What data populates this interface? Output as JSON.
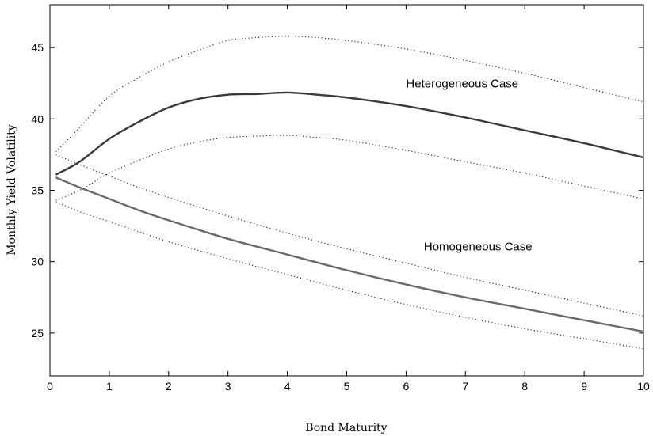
{
  "chart_data": {
    "type": "line",
    "title": "",
    "xlabel": "Bond Maturity",
    "ylabel": "Monthly Yield Volatility",
    "xlim": [
      0,
      10
    ],
    "ylim": [
      22,
      48
    ],
    "xticks": [
      0,
      1,
      2,
      3,
      4,
      5,
      6,
      7,
      8,
      9,
      10
    ],
    "yticks": [
      25,
      30,
      35,
      40,
      45
    ],
    "grid": false,
    "legend": "none",
    "series": [
      {
        "style": "solid",
        "color": "#3a3a3a",
        "width": 2.4,
        "x": [
          0.1,
          0.5,
          1,
          1.5,
          2,
          2.5,
          3,
          3.5,
          4,
          4.5,
          5,
          6,
          7,
          8,
          9,
          10
        ],
        "y": [
          36.1,
          37.0,
          38.6,
          39.8,
          40.8,
          41.4,
          41.7,
          41.75,
          41.85,
          41.7,
          41.5,
          40.9,
          40.1,
          39.2,
          38.3,
          37.3
        ]
      },
      {
        "style": "dotted",
        "color": "#222222",
        "width": 1.1,
        "x": [
          0.1,
          0.5,
          1,
          1.5,
          2,
          2.5,
          3,
          3.5,
          4,
          4.5,
          5,
          6,
          7,
          8,
          9,
          10
        ],
        "y": [
          37.7,
          39.4,
          41.6,
          42.9,
          44.0,
          44.8,
          45.5,
          45.7,
          45.8,
          45.7,
          45.5,
          44.9,
          44.1,
          43.2,
          42.2,
          41.2
        ]
      },
      {
        "style": "dotted",
        "color": "#222222",
        "width": 1.1,
        "x": [
          0.1,
          0.5,
          1,
          1.5,
          2,
          2.5,
          3,
          3.5,
          4,
          4.5,
          5,
          6,
          7,
          8,
          9,
          10
        ],
        "y": [
          34.3,
          35.0,
          36.2,
          37.1,
          37.9,
          38.4,
          38.7,
          38.8,
          38.85,
          38.7,
          38.5,
          37.8,
          37.0,
          36.2,
          35.3,
          34.4
        ]
      },
      {
        "style": "solid",
        "color": "#6a6a6a",
        "width": 2.4,
        "x": [
          0.1,
          0.5,
          1,
          1.5,
          2,
          3,
          4,
          5,
          6,
          7,
          8,
          9,
          10
        ],
        "y": [
          35.9,
          35.2,
          34.4,
          33.6,
          32.9,
          31.6,
          30.5,
          29.4,
          28.4,
          27.5,
          26.7,
          25.9,
          25.1
        ]
      },
      {
        "style": "dotted",
        "color": "#222222",
        "width": 1.1,
        "x": [
          0.1,
          0.5,
          1,
          1.5,
          2,
          3,
          4,
          5,
          6,
          7,
          8,
          9,
          10
        ],
        "y": [
          37.5,
          36.8,
          36.0,
          35.2,
          34.5,
          33.2,
          32.0,
          30.9,
          29.9,
          28.9,
          28.0,
          27.1,
          26.2
        ]
      },
      {
        "style": "dotted",
        "color": "#222222",
        "width": 1.1,
        "x": [
          0.1,
          0.5,
          1,
          1.5,
          2,
          3,
          4,
          5,
          6,
          7,
          8,
          9,
          10
        ],
        "y": [
          34.2,
          33.5,
          32.8,
          32.1,
          31.4,
          30.2,
          29.1,
          28.0,
          27.0,
          26.1,
          25.3,
          24.6,
          23.9
        ]
      }
    ],
    "annotations": [
      {
        "text": "Heterogeneous Case",
        "x": 6.0,
        "y": 42.2
      },
      {
        "text": "Homogeneous Case",
        "x": 6.3,
        "y": 30.8
      }
    ]
  }
}
